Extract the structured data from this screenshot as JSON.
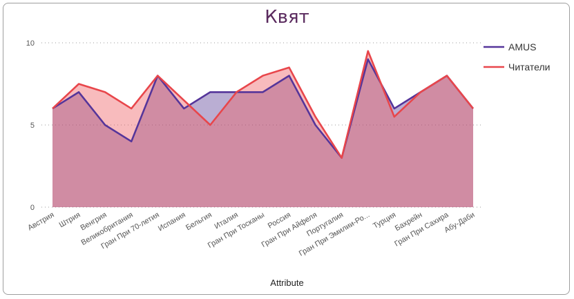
{
  "chart_data": {
    "type": "area",
    "title": "Квят",
    "xlabel": "Attribute",
    "ylabel": "",
    "ylim": [
      0,
      10
    ],
    "yticks": [
      0,
      5,
      10
    ],
    "legend_position": "top-right",
    "grid": true,
    "categories": [
      "Австрия",
      "Штрия",
      "Венгрия",
      "Великобритания",
      "Гран При 70-летия",
      "Испания",
      "Бельгия",
      "Италия",
      "Гран При Тосканы",
      "Россия",
      "Гран При Айфеля",
      "Португалия",
      "Гран При Эмилии-Ро...",
      "Турция",
      "Бахрейн",
      "Гран При Сахира",
      "Абу-Даби"
    ],
    "series": [
      {
        "name": "AMUS",
        "color": "#55359a",
        "fill": "#5a3f97",
        "values": [
          6,
          7,
          5,
          4,
          8,
          6,
          7,
          7,
          7,
          8,
          5,
          3,
          9,
          6,
          7,
          8,
          6
        ]
      },
      {
        "name": "Читатели",
        "color": "#e8464b",
        "fill": "#ee5d62",
        "values": [
          6,
          7.5,
          7,
          6,
          8,
          6.5,
          5,
          7,
          8,
          8.5,
          5.5,
          3,
          9.5,
          5.5,
          7,
          8,
          6
        ]
      }
    ]
  }
}
